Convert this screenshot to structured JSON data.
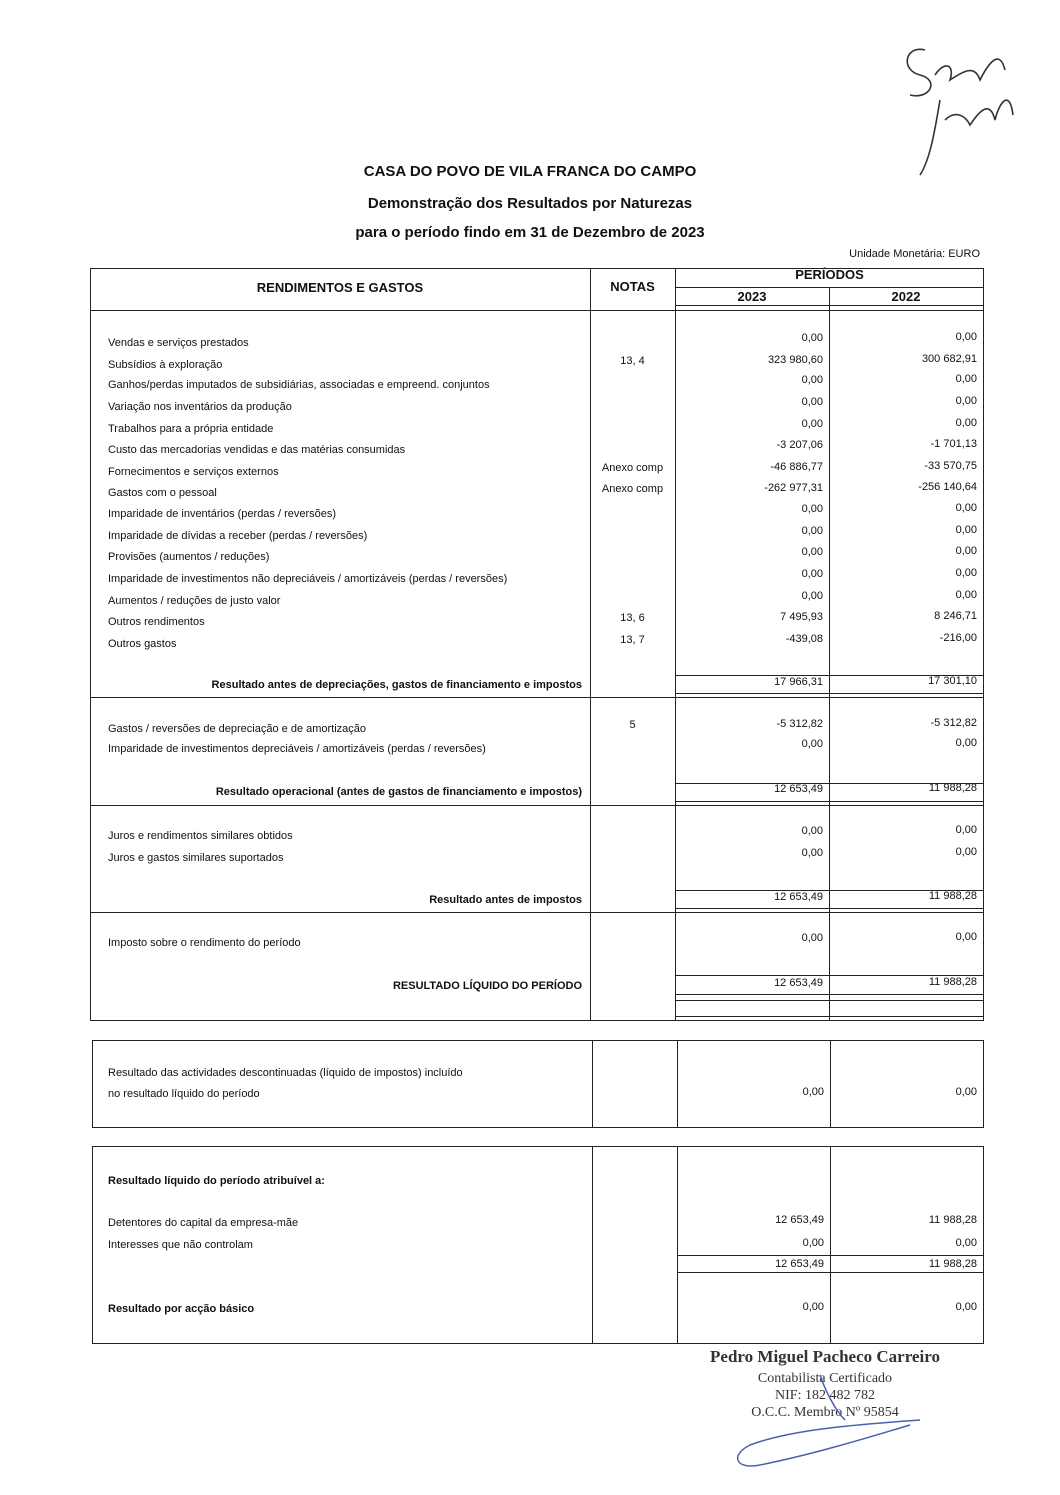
{
  "header": {
    "entity": "CASA DO POVO DE VILA FRANCA DO CAMPO",
    "statement": "Demonstração dos Resultados por Naturezas",
    "period": "para o período findo em 31 de Dezembro de 2023",
    "currency_unit": "Unidade Monetária: EURO"
  },
  "table_header": {
    "col_items": "RENDIMENTOS E GASTOS",
    "col_notes": "NOTAS",
    "periods": "PERÍODOS",
    "year_current": "2023",
    "year_prior": "2022"
  },
  "sections": [
    {
      "rows": [
        {
          "label": "Vendas e serviços prestados",
          "notes": "",
          "v2023": "0,00",
          "v2022": "0,00"
        },
        {
          "label": "Subsídios à exploração",
          "notes": "13, 4",
          "v2023": "323 980,60",
          "v2022": "300 682,91"
        },
        {
          "label": "Ganhos/perdas imputados de subsidiárias, associadas e empreend. conjuntos",
          "notes": "",
          "v2023": "0,00",
          "v2022": "0,00"
        },
        {
          "label": "Variação nos inventários da produção",
          "notes": "",
          "v2023": "0,00",
          "v2022": "0,00"
        },
        {
          "label": "Trabalhos para a própria entidade",
          "notes": "",
          "v2023": "0,00",
          "v2022": "0,00"
        },
        {
          "label": "Custo das mercadorias vendidas e das matérias consumidas",
          "notes": "",
          "v2023": "-3 207,06",
          "v2022": "-1 701,13"
        },
        {
          "label": "Fornecimentos e serviços externos",
          "notes": "Anexo comp",
          "v2023": "-46 886,77",
          "v2022": "-33 570,75"
        },
        {
          "label": "Gastos com o pessoal",
          "notes": "Anexo comp",
          "v2023": "-262 977,31",
          "v2022": "-256 140,64"
        },
        {
          "label": "Imparidade de inventários (perdas / reversões)",
          "notes": "",
          "v2023": "0,00",
          "v2022": "0,00"
        },
        {
          "label": "Imparidade de dívidas a receber (perdas / reversões)",
          "notes": "",
          "v2023": "0,00",
          "v2022": "0,00"
        },
        {
          "label": "Provisões (aumentos / reduções)",
          "notes": "",
          "v2023": "0,00",
          "v2022": "0,00"
        },
        {
          "label": "Imparidade de investimentos não depreciáveis / amortizáveis (perdas / reversões)",
          "notes": "",
          "v2023": "0,00",
          "v2022": "0,00"
        },
        {
          "label": "Aumentos / reduções de justo valor",
          "notes": "",
          "v2023": "0,00",
          "v2022": "0,00"
        },
        {
          "label": "Outros rendimentos",
          "notes": "13, 6",
          "v2023": "7 495,93",
          "v2022": "8 246,71"
        },
        {
          "label": "Outros gastos",
          "notes": "13, 7",
          "v2023": "-439,08",
          "v2022": "-216,00"
        }
      ],
      "subtotal": {
        "label": "Resultado antes de depreciações, gastos de financiamento e impostos",
        "v2023": "17 966,31",
        "v2022": "17 301,10"
      }
    },
    {
      "rows": [
        {
          "label": "Gastos / reversões de depreciação e de amortização",
          "notes": "5",
          "v2023": "-5 312,82",
          "v2022": "-5 312,82"
        },
        {
          "label": "Imparidade de investimentos depreciáveis / amortizáveis (perdas / reversões)",
          "notes": "",
          "v2023": "0,00",
          "v2022": "0,00"
        }
      ],
      "subtotal": {
        "label": "Resultado operacional (antes de gastos de financiamento e impostos)",
        "v2023": "12 653,49",
        "v2022": "11 988,28"
      }
    },
    {
      "rows": [
        {
          "label": "Juros e rendimentos similares obtidos",
          "notes": "",
          "v2023": "0,00",
          "v2022": "0,00"
        },
        {
          "label": "Juros e gastos similares suportados",
          "notes": "",
          "v2023": "0,00",
          "v2022": "0,00"
        }
      ],
      "subtotal": {
        "label": "Resultado antes de impostos",
        "v2023": "12 653,49",
        "v2022": "11 988,28"
      }
    },
    {
      "rows": [
        {
          "label": "Imposto sobre o rendimento do período",
          "notes": "",
          "v2023": "0,00",
          "v2022": "0,00"
        }
      ],
      "subtotal": {
        "label": "RESULTADO LÍQUIDO DO PERÍODO",
        "v2023": "12 653,49",
        "v2022": "11 988,28"
      }
    }
  ],
  "discontinued": {
    "label_line1": "Resultado das actividades descontinuadas (líquido de impostos) incluído",
    "label_line2": "no resultado líquido do período",
    "v2023": "0,00",
    "v2022": "0,00"
  },
  "attributable": {
    "title": "Resultado líquido do período atribuível a:",
    "rows": [
      {
        "label": "Detentores do capital da empresa-mãe",
        "v2023": "12 653,49",
        "v2022": "11 988,28"
      },
      {
        "label": "Interesses que não controlam",
        "v2023": "0,00",
        "v2022": "0,00"
      }
    ],
    "total": {
      "v2023": "12 653,49",
      "v2022": "11 988,28"
    },
    "eps": {
      "label": "Resultado por acção básico",
      "v2023": "0,00",
      "v2022": "0,00"
    }
  },
  "stamp": {
    "name": "Pedro Miguel Pacheco Carreiro",
    "role": "Contabilista Certificado",
    "nif": "NIF: 182 482 782",
    "membership": "O.C.C. Membro Nº 95854",
    "ink_color": "#4a5fb0"
  }
}
